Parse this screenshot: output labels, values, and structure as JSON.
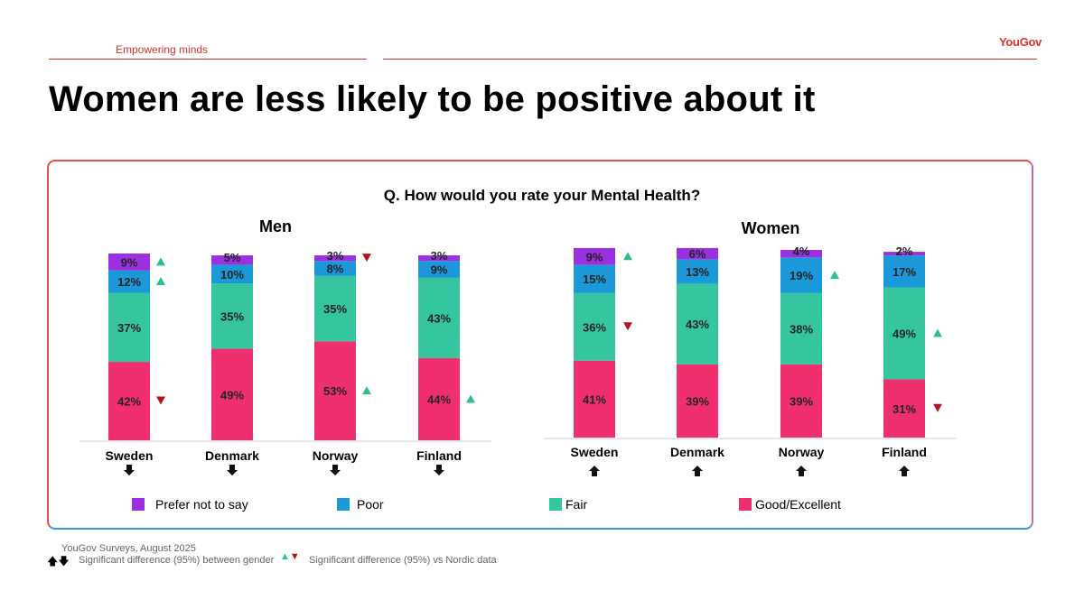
{
  "header": {
    "tagline": "Empowering minds",
    "logo": "YouGov"
  },
  "title": "Women are less likely to be positive about it",
  "question": "Q. How would you rate your Mental Health?",
  "colors": {
    "prefer": "#9b30e0",
    "poor": "#1a98d8",
    "fair": "#35c6a0",
    "good": "#f0306e",
    "up": "#2bbf8f",
    "down": "#b5141c",
    "gender_arrow": "#111111"
  },
  "chart_data": [
    {
      "type": "bar",
      "stacked": true,
      "title": "Men",
      "categories": [
        "Sweden",
        "Denmark",
        "Norway",
        "Finland"
      ],
      "series": [
        {
          "name": "Good/Excellent",
          "key": "good",
          "values": [
            42,
            49,
            53,
            44
          ]
        },
        {
          "name": "Fair",
          "key": "fair",
          "values": [
            37,
            35,
            35,
            43
          ]
        },
        {
          "name": "Poor",
          "key": "poor",
          "values": [
            12,
            10,
            8,
            9
          ]
        },
        {
          "name": "Prefer not to say",
          "key": "prefer",
          "values": [
            9,
            5,
            3,
            3
          ]
        }
      ],
      "nordic_significance": [
        {
          "prefer": "up",
          "poor": "up",
          "good": "down"
        },
        {},
        {
          "prefer": "down",
          "good": "up"
        },
        {
          "good": "up"
        }
      ],
      "gender_significance": [
        "down",
        "down",
        "down",
        "down"
      ]
    },
    {
      "type": "bar",
      "stacked": true,
      "title": "Women",
      "categories": [
        "Sweden",
        "Denmark",
        "Norway",
        "Finland"
      ],
      "series": [
        {
          "name": "Good/Excellent",
          "key": "good",
          "values": [
            41,
            39,
            39,
            31
          ]
        },
        {
          "name": "Fair",
          "key": "fair",
          "values": [
            36,
            43,
            38,
            49
          ]
        },
        {
          "name": "Poor",
          "key": "poor",
          "values": [
            15,
            13,
            19,
            17
          ]
        },
        {
          "name": "Prefer not to say",
          "key": "prefer",
          "values": [
            9,
            6,
            4,
            2
          ]
        }
      ],
      "nordic_significance": [
        {
          "prefer": "up",
          "fair": "down"
        },
        {},
        {
          "poor": "up"
        },
        {
          "fair": "up",
          "good": "down"
        }
      ],
      "gender_significance": [
        "up",
        "up",
        "up",
        "up"
      ]
    }
  ],
  "legend": [
    {
      "label": "Prefer not to say",
      "key": "prefer"
    },
    {
      "label": "Poor",
      "key": "poor"
    },
    {
      "label": "Fair",
      "key": "fair"
    },
    {
      "label": "Good/Excellent",
      "key": "good"
    }
  ],
  "footer": {
    "source": "YouGov Surveys, August 2025",
    "gender_note": "Significant difference (95%) between gender",
    "nordic_note": "Significant difference (95%) vs Nordic data"
  }
}
